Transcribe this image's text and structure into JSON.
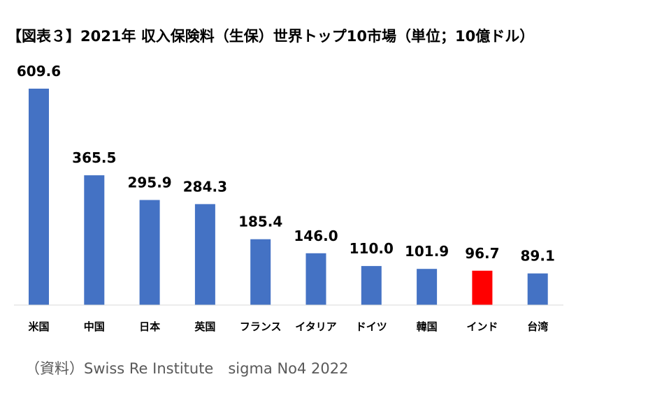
{
  "chart_data": {
    "type": "bar",
    "title": "【図表３】2021年 収入保険料（生保）世界トップ10市場（単位；10億ドル）",
    "categories": [
      "米国",
      "中国",
      "日本",
      "英国",
      "フランス",
      "イタリア",
      "ドイツ",
      "韓国",
      "インド",
      "台湾"
    ],
    "values": [
      609.6,
      365.5,
      295.9,
      284.3,
      185.4,
      146.0,
      110.0,
      101.9,
      96.7,
      89.1
    ],
    "value_labels": [
      "609.6",
      "365.5",
      "295.9",
      "284.3",
      "185.4",
      "146.0",
      "110.0",
      "101.9",
      "96.7",
      "89.1"
    ],
    "colors": [
      "#4472C4",
      "#4472C4",
      "#4472C4",
      "#4472C4",
      "#4472C4",
      "#4472C4",
      "#4472C4",
      "#4472C4",
      "#FF0000",
      "#4472C4"
    ],
    "xlabel": "",
    "ylabel": "",
    "ylim": [
      0,
      609.6
    ],
    "grid": false,
    "legend": "none"
  },
  "source": "（資料）Swiss Re Institute　sigma No4 2022"
}
